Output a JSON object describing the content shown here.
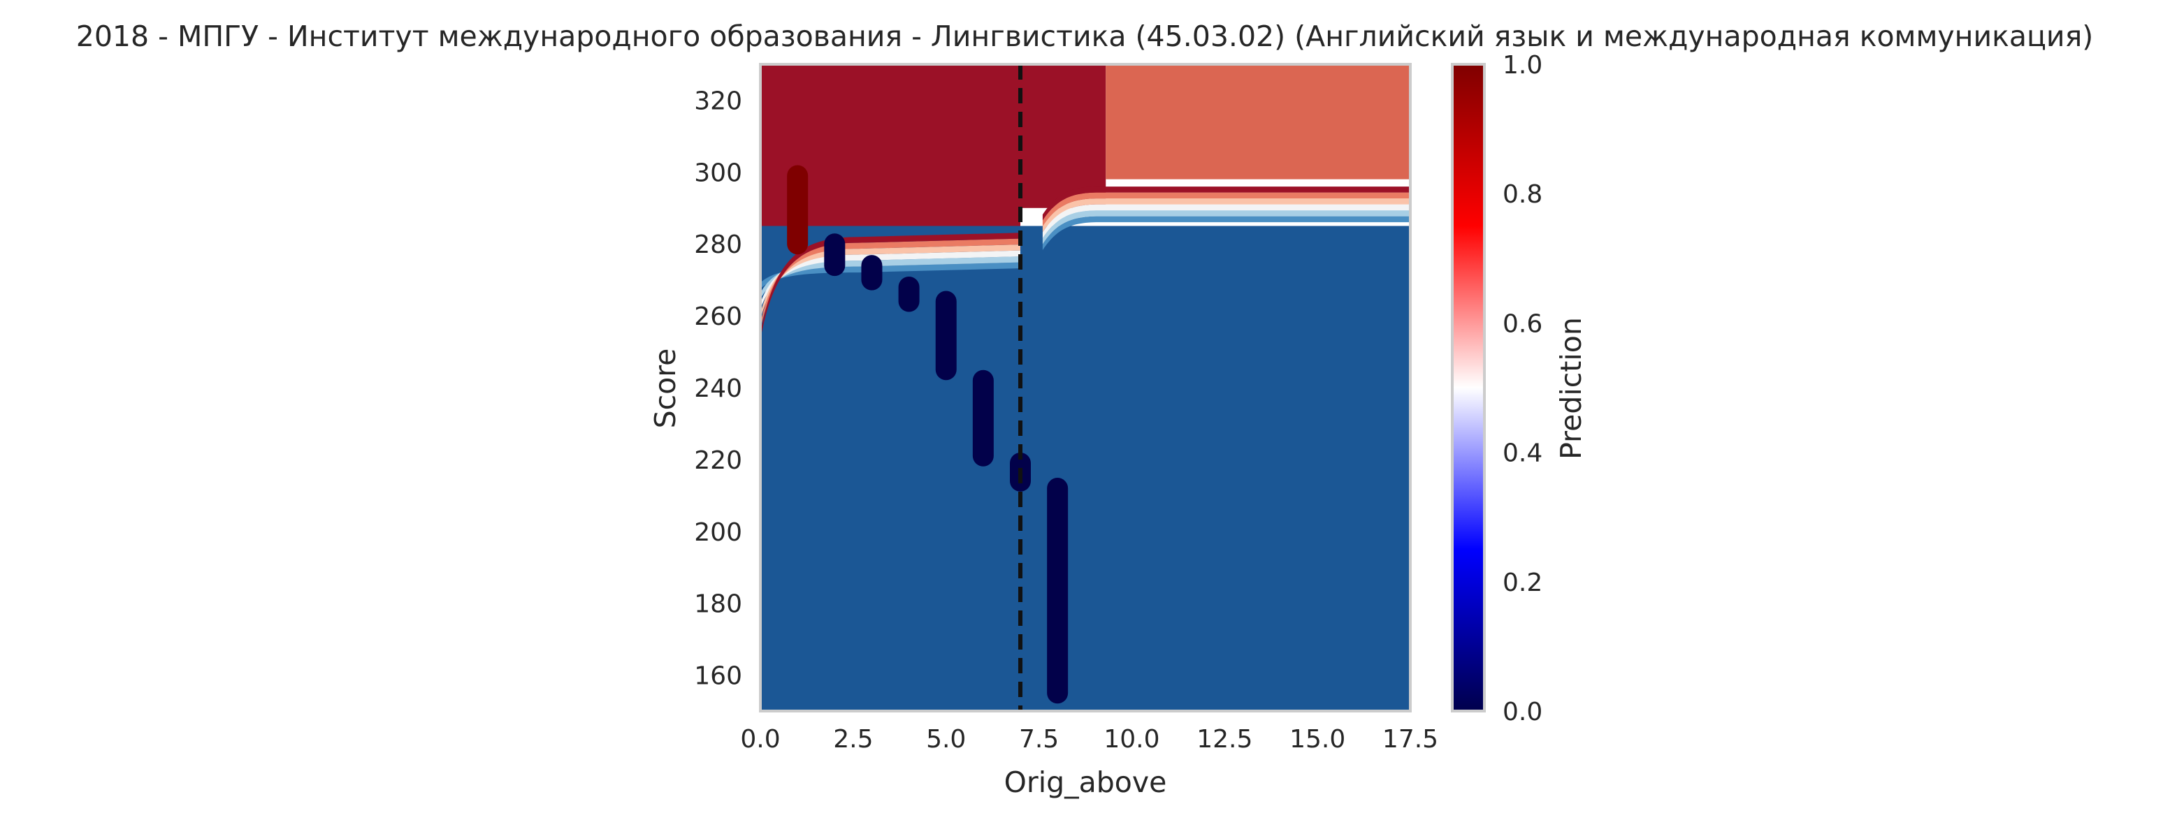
{
  "chart_data": {
    "type": "heatmap",
    "title": "2018 - МПГУ - Институт международного образования - Лингвистика (45.03.02) (Английский язык и международная коммуникация)",
    "xlabel": "Orig_above",
    "ylabel": "Score",
    "xlim": [
      0,
      17.5
    ],
    "ylim": [
      150,
      330
    ],
    "x_ticks": [
      "0.0",
      "2.5",
      "5.0",
      "7.5",
      "10.0",
      "12.5",
      "15.0",
      "17.5"
    ],
    "y_ticks": [
      "160",
      "180",
      "200",
      "220",
      "240",
      "260",
      "280",
      "300",
      "320"
    ],
    "grid": false,
    "colorbar": {
      "label": "Prediction",
      "colormap": "seismic",
      "range": [
        0,
        1
      ],
      "ticks": [
        "0.0",
        "0.2",
        "0.4",
        "0.6",
        "0.8",
        "1.0"
      ]
    },
    "threshold_line": {
      "x": 7,
      "style": "dashed",
      "color": "#111111"
    },
    "decision_regions": [
      {
        "x_range": [
          0,
          7
        ],
        "y_range": [
          282,
          330
        ],
        "prediction": 0.95,
        "color": "#9b1127"
      },
      {
        "x_range": [
          7,
          9.3
        ],
        "y_range": [
          290,
          330
        ],
        "prediction": 0.95,
        "color": "#9b1127"
      },
      {
        "x_range": [
          9.3,
          17.5
        ],
        "y_range": [
          298,
          330
        ],
        "prediction": 0.75,
        "color": "#db6652"
      },
      {
        "x_range": [
          0,
          17.5
        ],
        "y_range": [
          150,
          285
        ],
        "prediction": 0.05,
        "color": "#1b5795"
      }
    ],
    "boundary_bands": {
      "colors": [
        "#4a8fc3",
        "#a8cfe5",
        "#f3f4f5",
        "#fac3a9",
        "#ea7b63",
        "#9b1127"
      ],
      "left_segment": {
        "x_range": [
          0,
          7
        ],
        "y_center": 277
      },
      "right_segment": {
        "x_range": [
          7.6,
          17.5
        ],
        "y_center": 291
      }
    },
    "points": [
      {
        "x": 1,
        "y_range": [
          280,
          299
        ],
        "prediction": 1.0,
        "color": "#7f0000"
      },
      {
        "x": 2,
        "y_range": [
          274,
          280
        ],
        "prediction": 0.0,
        "color": "#02014a"
      },
      {
        "x": 3,
        "y_range": [
          270,
          274
        ],
        "prediction": 0.0,
        "color": "#02014a"
      },
      {
        "x": 4,
        "y_range": [
          264,
          268
        ],
        "prediction": 0.0,
        "color": "#02014a"
      },
      {
        "x": 5,
        "y_range": [
          245,
          264
        ],
        "prediction": 0.0,
        "color": "#02014a"
      },
      {
        "x": 6,
        "y_range": [
          221,
          242
        ],
        "prediction": 0.0,
        "color": "#02014a"
      },
      {
        "x": 7,
        "y_range": [
          214,
          219
        ],
        "prediction": 0.0,
        "color": "#02014a"
      },
      {
        "x": 8,
        "y_range": [
          155,
          212
        ],
        "prediction": 0.0,
        "color": "#02014a"
      }
    ]
  }
}
